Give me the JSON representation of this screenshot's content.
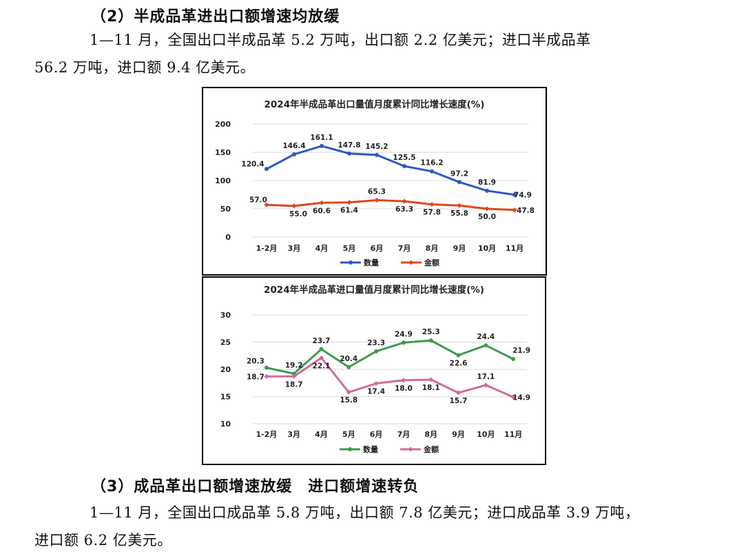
{
  "section2": {
    "heading": "（2）半成品革进出口额增速均放缓",
    "paragraph_line1": "1—11 月，全国出口半成品革 5.2 万吨，出口额 2.2 亿美元；进口半成品革",
    "paragraph_line2": "56.2 万吨，进口额 9.4 亿美元。"
  },
  "section3": {
    "heading": "（3）成品革出口额增速放缓　进口额增速转负",
    "paragraph_line1": "1—11 月，全国出口成品革 5.8 万吨，出口额 7.8 亿美元；进口成品革 3.9 万吨，",
    "paragraph_line2": "进口额 6.2 亿美元。"
  },
  "colors": {
    "export_quantity": "#2E56C8",
    "export_amount": "#E0461C",
    "import_quantity": "#3E9A4E",
    "import_amount": "#D46A93",
    "gridline": "#D9D9D9"
  },
  "chart_data": [
    {
      "type": "line",
      "title": "2024年半成品革出口量值月度累计同比增长速度(%)",
      "categories": [
        "1-2月",
        "3月",
        "4月",
        "5月",
        "6月",
        "7月",
        "8月",
        "9月",
        "10月",
        "11月"
      ],
      "series": [
        {
          "name": "数量",
          "values": [
            120.4,
            146.4,
            161.1,
            147.8,
            145.2,
            125.5,
            116.2,
            97.2,
            81.9,
            74.9
          ]
        },
        {
          "name": "金额",
          "values": [
            57.0,
            55.0,
            60.6,
            61.4,
            65.3,
            63.3,
            57.8,
            55.8,
            50.0,
            47.8
          ]
        }
      ],
      "ylim": [
        0,
        200
      ],
      "yticks": [
        0,
        50,
        100,
        150,
        200
      ],
      "grid": true,
      "legend": "bottom"
    },
    {
      "type": "line",
      "title": "2024年半成品革进口量值月度累计同比增长速度(%)",
      "categories": [
        "1-2月",
        "3月",
        "4月",
        "5月",
        "6月",
        "7月",
        "8月",
        "9月",
        "10月",
        "11月"
      ],
      "series": [
        {
          "name": "数量",
          "values": [
            20.3,
            19.2,
            23.7,
            20.4,
            23.3,
            24.9,
            25.3,
            22.6,
            24.4,
            21.9
          ]
        },
        {
          "name": "金额",
          "values": [
            18.7,
            18.7,
            22.1,
            15.8,
            17.4,
            18.0,
            18.1,
            15.7,
            17.1,
            14.9
          ]
        }
      ],
      "ylim": [
        10,
        30
      ],
      "yticks": [
        10,
        15,
        20,
        25,
        30
      ],
      "grid": true,
      "legend": "bottom"
    }
  ]
}
